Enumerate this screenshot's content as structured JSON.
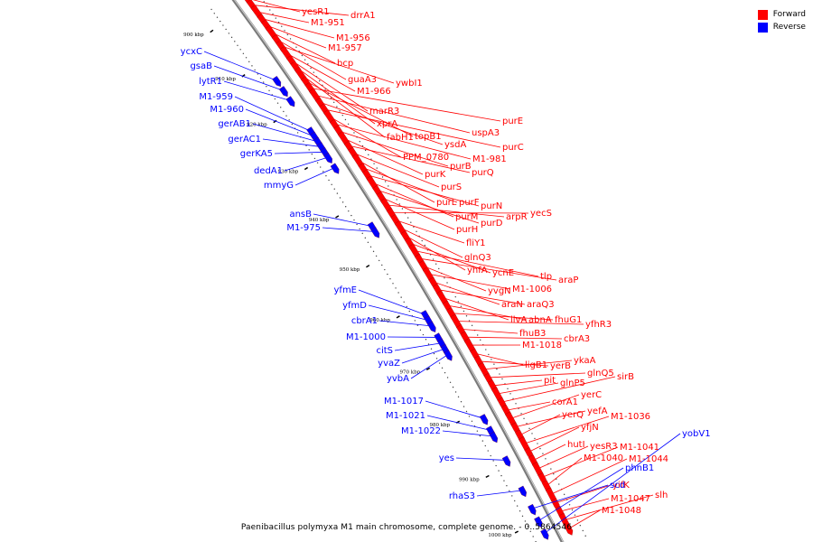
{
  "legend": [
    {
      "label": "Forward",
      "color": "#ff0000"
    },
    {
      "label": "Reverse",
      "color": "#0000ff"
    }
  ],
  "caption": "Paenibacillus polymyxa M1 main chromosome, complete genome. - 0..5864546",
  "colors": {
    "forward": "#ff0000",
    "reverse": "#0000ff",
    "backbone": "#888888"
  },
  "ticks": [
    "900 kbp",
    "910 kbp",
    "920 kbp",
    "930 kbp",
    "940 kbp",
    "950 kbp",
    "960 kbp",
    "970 kbp",
    "980 kbp",
    "990 kbp",
    "1000 kbp"
  ],
  "reverse_labels": [
    "ycxC",
    "gsaB",
    "lytR1",
    "M1-959",
    "M1-960",
    "gerAB1",
    "gerAC1",
    "gerKA5",
    "dedA1",
    "mmyG",
    "ansB",
    "M1-975",
    "yfmE",
    "yfmD",
    "cbrA1",
    "M1-1000",
    "citS",
    "yvaZ",
    "yvbA",
    "M1-1017",
    "M1-1021",
    "M1-1022",
    "yes",
    "rhaS3",
    "scd",
    "phnB1",
    "yobV1"
  ],
  "forward_labels": [
    "yesR1",
    "drrA1",
    "M1-951",
    "M1-956",
    "M1-957",
    "bcp",
    "guaA3",
    "ywbI1",
    "M1-966",
    "marR3",
    "xprA",
    "fabH1",
    "topB1",
    "purE",
    "uspA3",
    "ysdA",
    "purC",
    "PPM_0780",
    "M1-981",
    "purB",
    "purK",
    "purQ",
    "purS",
    "purL",
    "purF",
    "purN",
    "purM",
    "purD",
    "purH",
    "arpR",
    "yecS",
    "fliY1",
    "glnQ3",
    "yhfA",
    "ycnE",
    "tlp",
    "araP",
    "yvgN",
    "M1-1006",
    "araN",
    "araQ3",
    "ilvA",
    "abnA",
    "fhuG1",
    "yfhR3",
    "fhuB3",
    "cbrA3",
    "M1-1018",
    "ligB1",
    "yerB",
    "ykaA",
    "glnQ5",
    "pit",
    "glnP5",
    "sirB",
    "corA1",
    "yerC",
    "yefA",
    "yerQ",
    "M1-1036",
    "yfjN",
    "hutI",
    "yesR3",
    "M1-1041",
    "M1-1040",
    "M1-1044",
    "yifK",
    "M1-1047",
    "slh",
    "M1-1048"
  ]
}
